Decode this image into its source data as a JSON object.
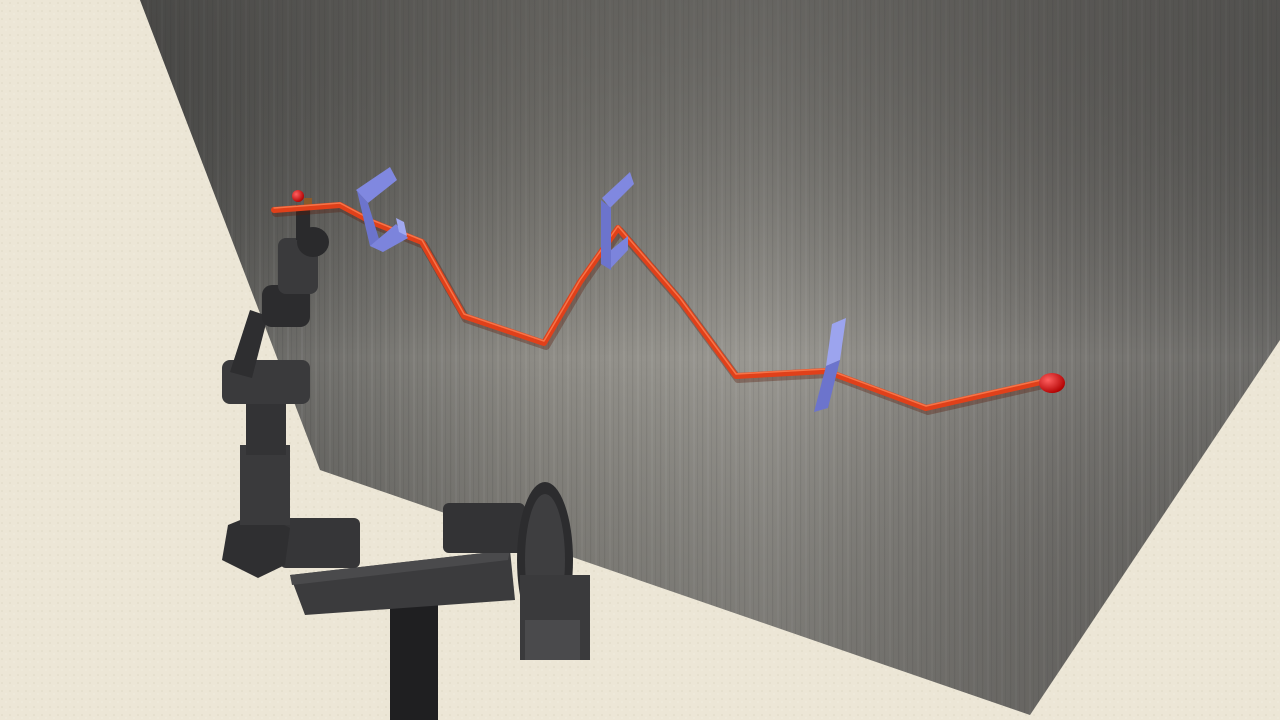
{
  "scene": {
    "floor_color": "#ece6d6",
    "wall_color": "#7a7a76",
    "rope_color": "#e0401a",
    "endpoint_color": "#e00000",
    "clip_color": "#7c84dc",
    "robot_color": "#3a3a3c",
    "clip_count": 3,
    "robot_joint_count": 7
  }
}
